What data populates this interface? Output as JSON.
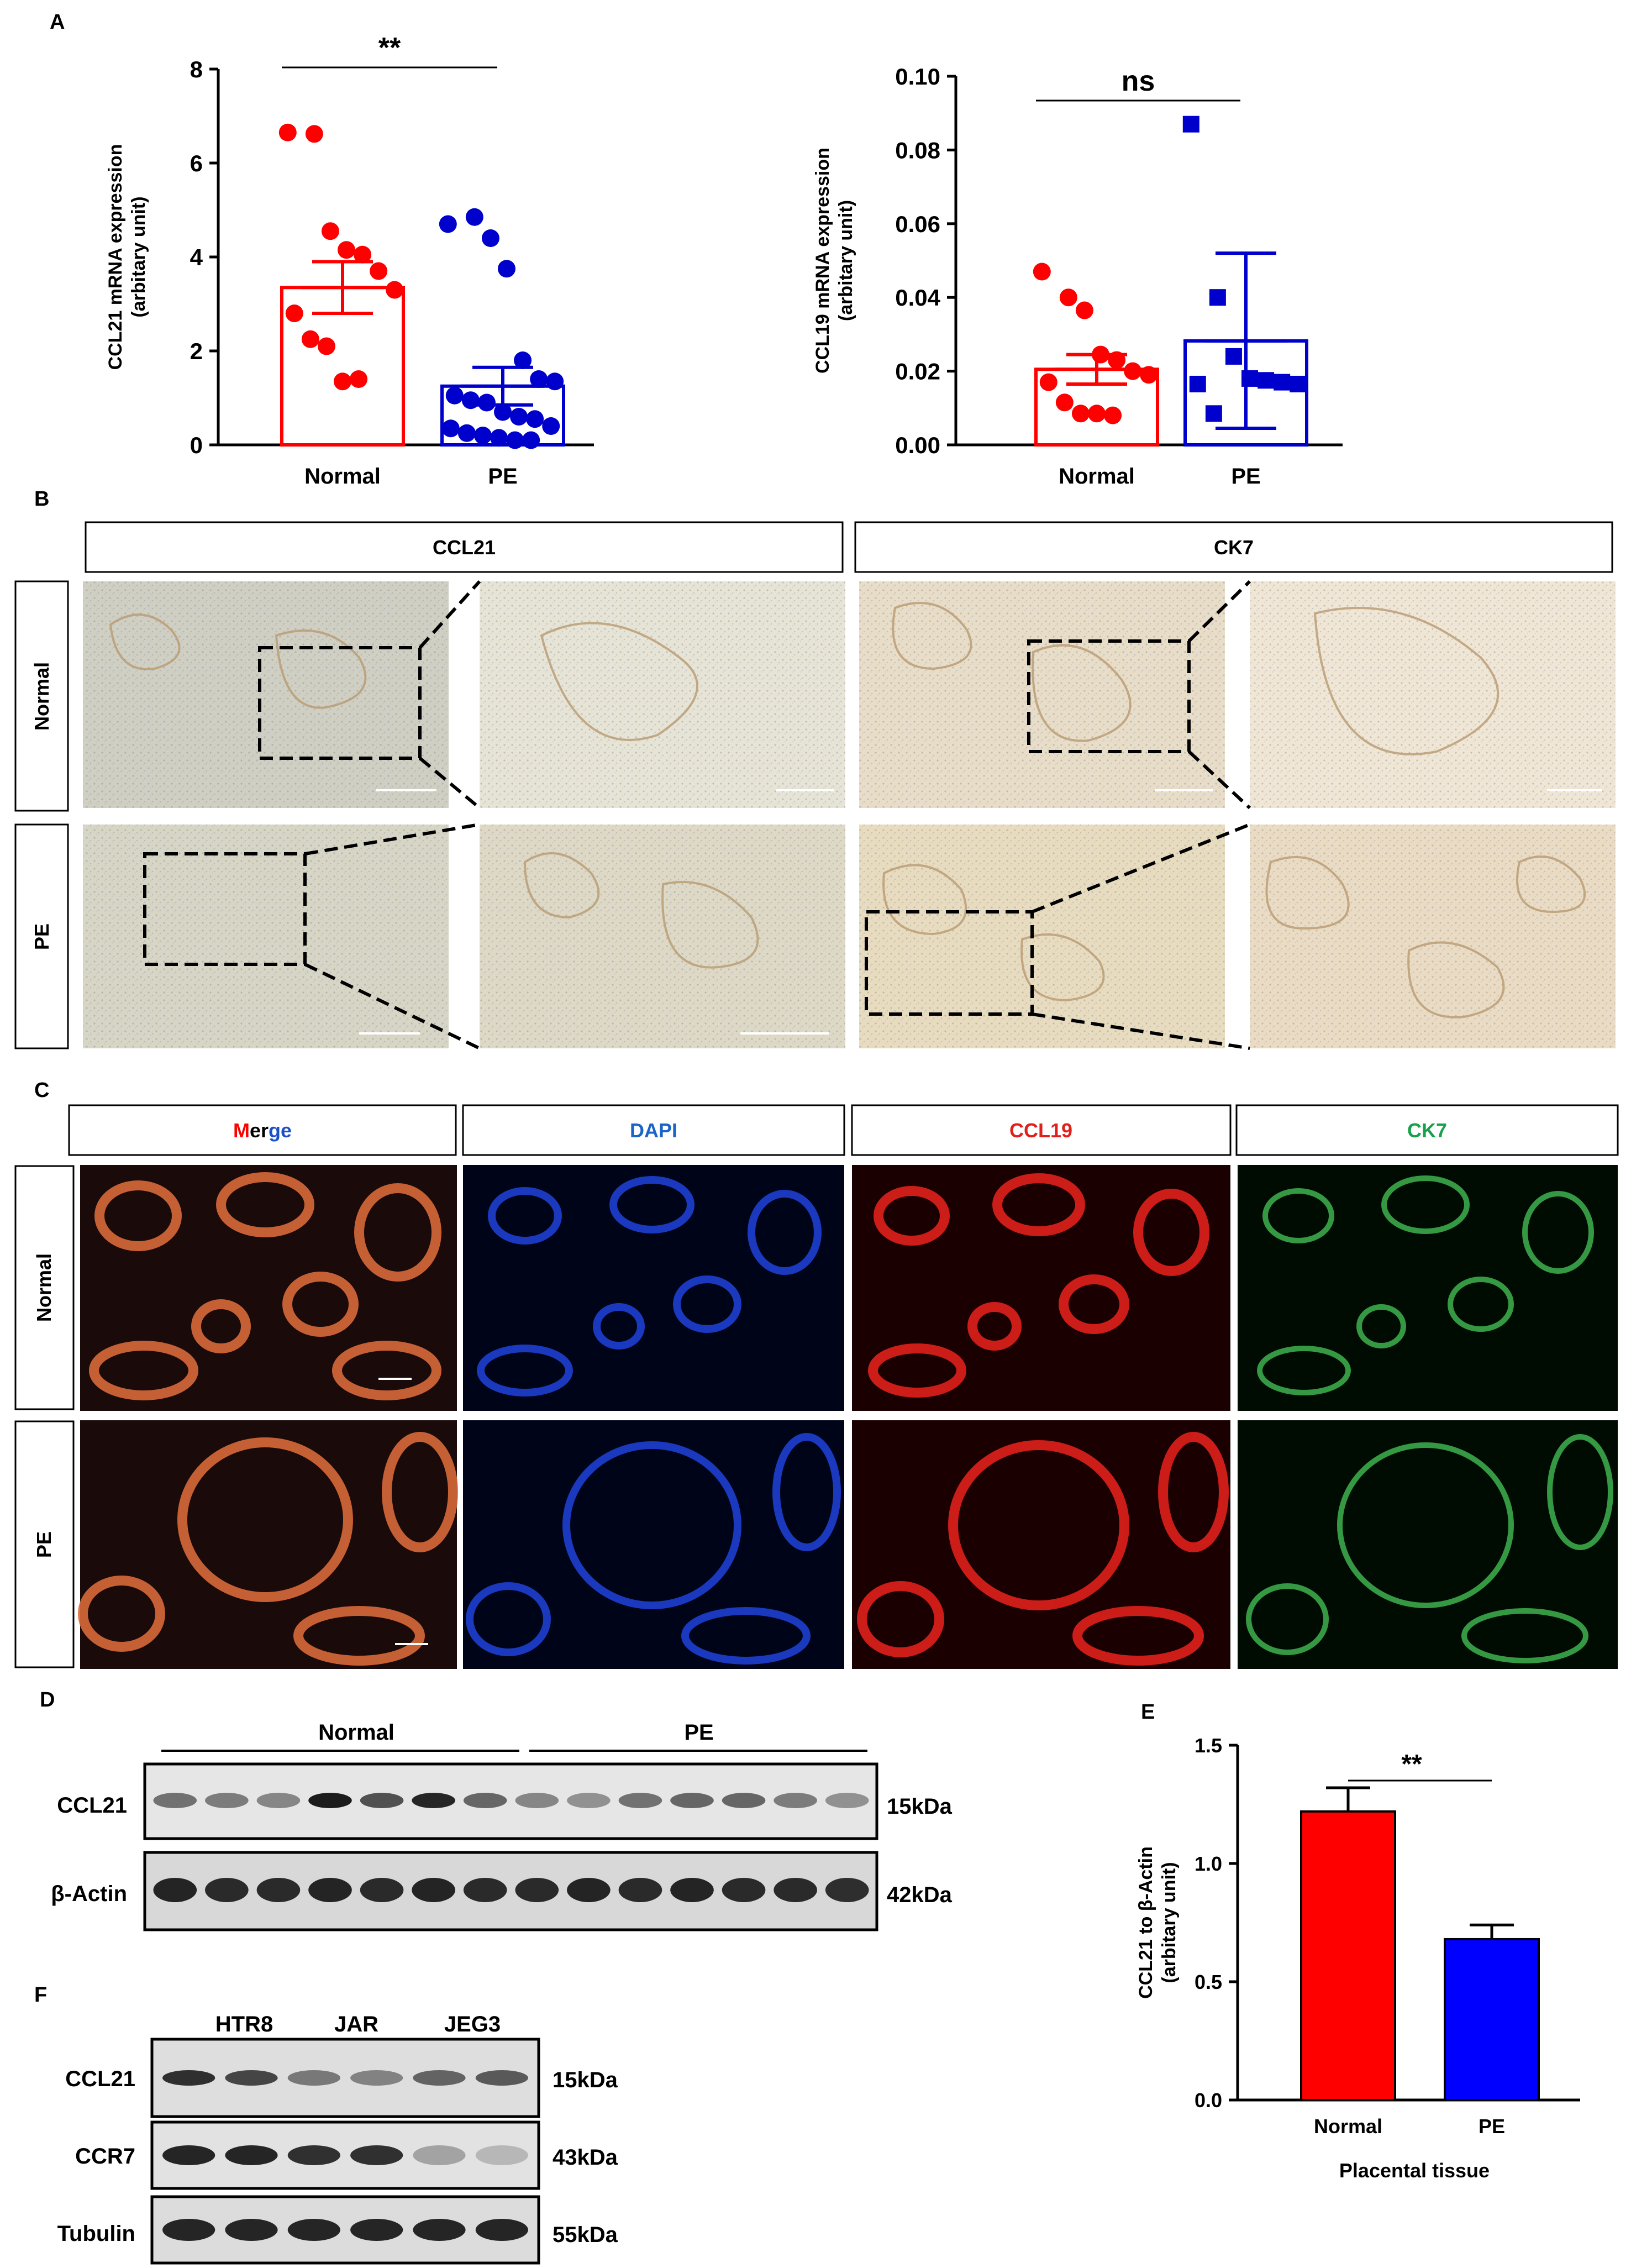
{
  "panels": {
    "A": "A",
    "B": "B",
    "C": "C",
    "D": "D",
    "E": "E",
    "F": "F"
  },
  "colors": {
    "normal": "#ff0000",
    "pe": "#0000cc",
    "pe_bar_e": "#0000ff",
    "dapi": "#1a63c9",
    "ccl19": "#e0201b",
    "ck7": "#15a24a",
    "merge_g": "#1a8a3a",
    "merge_b": "#1a4fc9"
  },
  "chart_data": [
    {
      "id": "A-left",
      "type": "scatter",
      "ylabel_line1": "CCL21 mRNA expression",
      "ylabel_line2": "(arbitary unit)",
      "categories": [
        "Normal",
        "PE"
      ],
      "ylim": [
        0,
        8
      ],
      "yticks": [
        "0",
        "2",
        "4",
        "6",
        "8"
      ],
      "significance": "**",
      "bars": [
        {
          "name": "Normal",
          "mean": 3.35,
          "sem_low": 2.8,
          "sem_high": 3.9
        },
        {
          "name": "PE",
          "mean": 1.25,
          "sem_low": 0.85,
          "sem_high": 1.65
        }
      ],
      "points": {
        "Normal": [
          6.65,
          6.62,
          4.55,
          4.15,
          4.05,
          3.7,
          3.3,
          2.8,
          2.25,
          2.1,
          1.35,
          1.4
        ],
        "PE": [
          4.7,
          4.85,
          4.4,
          3.75,
          1.8,
          1.4,
          1.35,
          1.05,
          0.95,
          0.9,
          0.7,
          0.6,
          0.55,
          0.4,
          0.35,
          0.25,
          0.2,
          0.15,
          0.1,
          0.1
        ]
      }
    },
    {
      "id": "A-right",
      "type": "scatter",
      "ylabel_line1": "CCL19 mRNA expression",
      "ylabel_line2": "(arbitary unit)",
      "categories": [
        "Normal",
        "PE"
      ],
      "ylim": [
        0,
        0.1
      ],
      "yticks": [
        "0.00",
        "0.02",
        "0.04",
        "0.06",
        "0.08",
        "0.10"
      ],
      "significance": "ns",
      "bars": [
        {
          "name": "Normal",
          "mean": 0.0205,
          "sem_low": 0.0165,
          "sem_high": 0.0245
        },
        {
          "name": "PE",
          "mean": 0.0282,
          "sem_low": 0.0045,
          "sem_high": 0.052
        }
      ],
      "points": {
        "Normal": [
          0.047,
          0.04,
          0.0365,
          0.0245,
          0.023,
          0.02,
          0.019,
          0.017,
          0.0115,
          0.0085,
          0.0085,
          0.008
        ],
        "PE": [
          0.087,
          0.04,
          0.024,
          0.018,
          0.0175,
          0.017,
          0.0165,
          0.0165,
          0.0085
        ]
      }
    },
    {
      "id": "E",
      "type": "bar",
      "ylabel_line1": "CCL21 to β-Actin",
      "ylabel_line2": "(arbitary unit)",
      "xlabel": "Placental tissue",
      "categories": [
        "Normal",
        "PE"
      ],
      "ylim": [
        0,
        1.5
      ],
      "yticks": [
        "0.0",
        "0.5",
        "1.0",
        "1.5"
      ],
      "significance": "**",
      "values": [
        1.22,
        0.68
      ],
      "errors": [
        0.1,
        0.06
      ]
    }
  ],
  "panelB": {
    "headers": [
      "CCL21",
      "CK7"
    ],
    "rows": [
      "Normal",
      "PE"
    ]
  },
  "panelC": {
    "headers": {
      "merge_parts": [
        "M",
        "er",
        "g",
        "e"
      ],
      "dapi": "DAPI",
      "ccl19": "CCL19",
      "ck7": "CK7"
    },
    "rows": [
      "Normal",
      "PE"
    ]
  },
  "panelD": {
    "group_normal": "Normal",
    "group_pe": "PE",
    "rows": [
      {
        "label": "CCL21",
        "size": "15kDa"
      },
      {
        "label": "β-Actin",
        "size": "42kDa"
      }
    ],
    "lanes": 14
  },
  "panelF": {
    "cells": [
      "HTR8",
      "JAR",
      "JEG3"
    ],
    "rows": [
      {
        "label": "CCL21",
        "size": "15kDa"
      },
      {
        "label": "CCR7",
        "size": "43kDa"
      },
      {
        "label": "Tubulin",
        "size": "55kDa"
      }
    ],
    "lanes": 6
  }
}
